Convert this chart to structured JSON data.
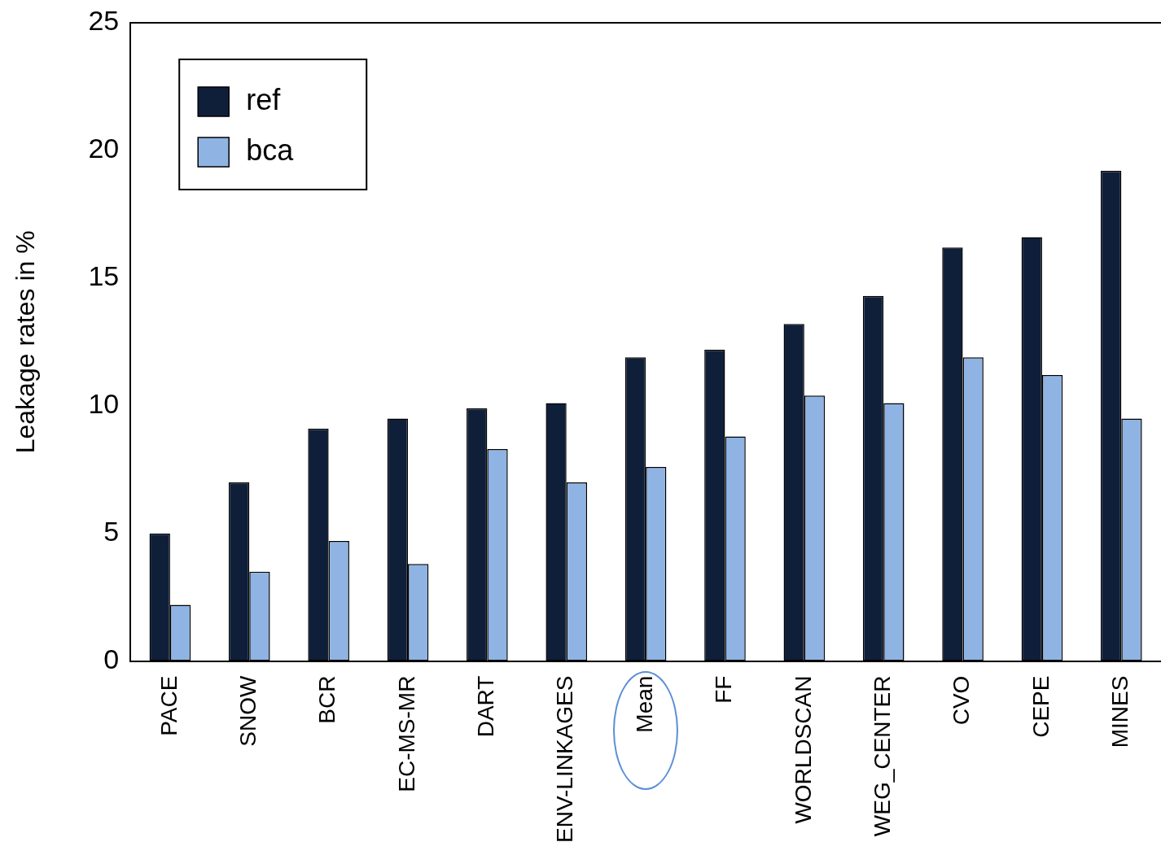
{
  "chart_data": {
    "type": "bar",
    "ylabel": "Leakage rates in %",
    "categories": [
      "PACE",
      "SNOW",
      "BCR",
      "EC-MS-MR",
      "DART",
      "ENV-LINKAGES",
      "Mean",
      "FF",
      "WORLDSCAN",
      "WEG_CENTER",
      "CVO",
      "CEPE",
      "MINES"
    ],
    "series": [
      {
        "name": "ref",
        "color": "#0f1f3a",
        "values": [
          5.0,
          7.0,
          9.1,
          9.5,
          9.9,
          10.1,
          11.9,
          12.2,
          13.2,
          14.3,
          16.2,
          16.6,
          19.2
        ]
      },
      {
        "name": "bca",
        "color": "#8fb4e3",
        "values": [
          2.2,
          3.5,
          4.7,
          3.8,
          8.3,
          7.0,
          7.6,
          8.8,
          10.4,
          10.1,
          11.9,
          11.2,
          9.5
        ]
      }
    ],
    "ylim": [
      0,
      25
    ],
    "yticks": [
      0,
      5,
      10,
      15,
      20,
      25
    ],
    "grid": false,
    "legend": "top left"
  }
}
